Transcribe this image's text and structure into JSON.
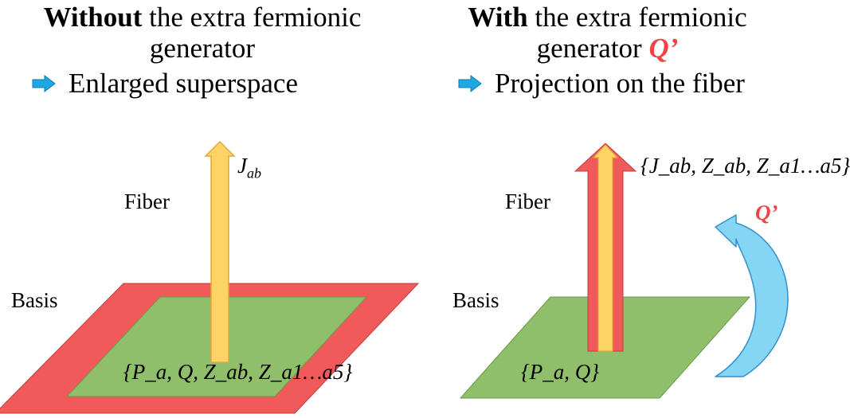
{
  "left": {
    "heading_bold": "Without",
    "heading_rest_line1": " the extra fermionic",
    "heading_line2": "generator",
    "bullet_text": "Enlarged superspace",
    "fiber_label": "Fiber",
    "basis_label": "Basis",
    "fiber_generators": "J",
    "fiber_generators_sub": "ab",
    "basis_generators": "{P_a, Q, Z_ab, Z_a1…a5}"
  },
  "right": {
    "heading_bold": "With",
    "heading_rest_line1": " the extra fermionic",
    "heading_line2": "generator",
    "heading_q": "Q’",
    "bullet_text": "Projection on the fiber",
    "fiber_label": "Fiber",
    "basis_label": "Basis",
    "fiber_generators": "{J_ab, Z_ab, Z_a1…a5}",
    "basis_generators": "{P_a, Q}",
    "extra_generator_label": "Q’"
  },
  "colors": {
    "red": "#f15a5a",
    "green": "#8fbf6a",
    "yellow": "#ffd466",
    "light_blue": "#7fd3f4",
    "q_red": "#f04343",
    "bullet_blue": "#1ea7e1"
  },
  "icons": {
    "bullet": "right-arrow-icon",
    "curved": "curved-arrow-icon"
  }
}
